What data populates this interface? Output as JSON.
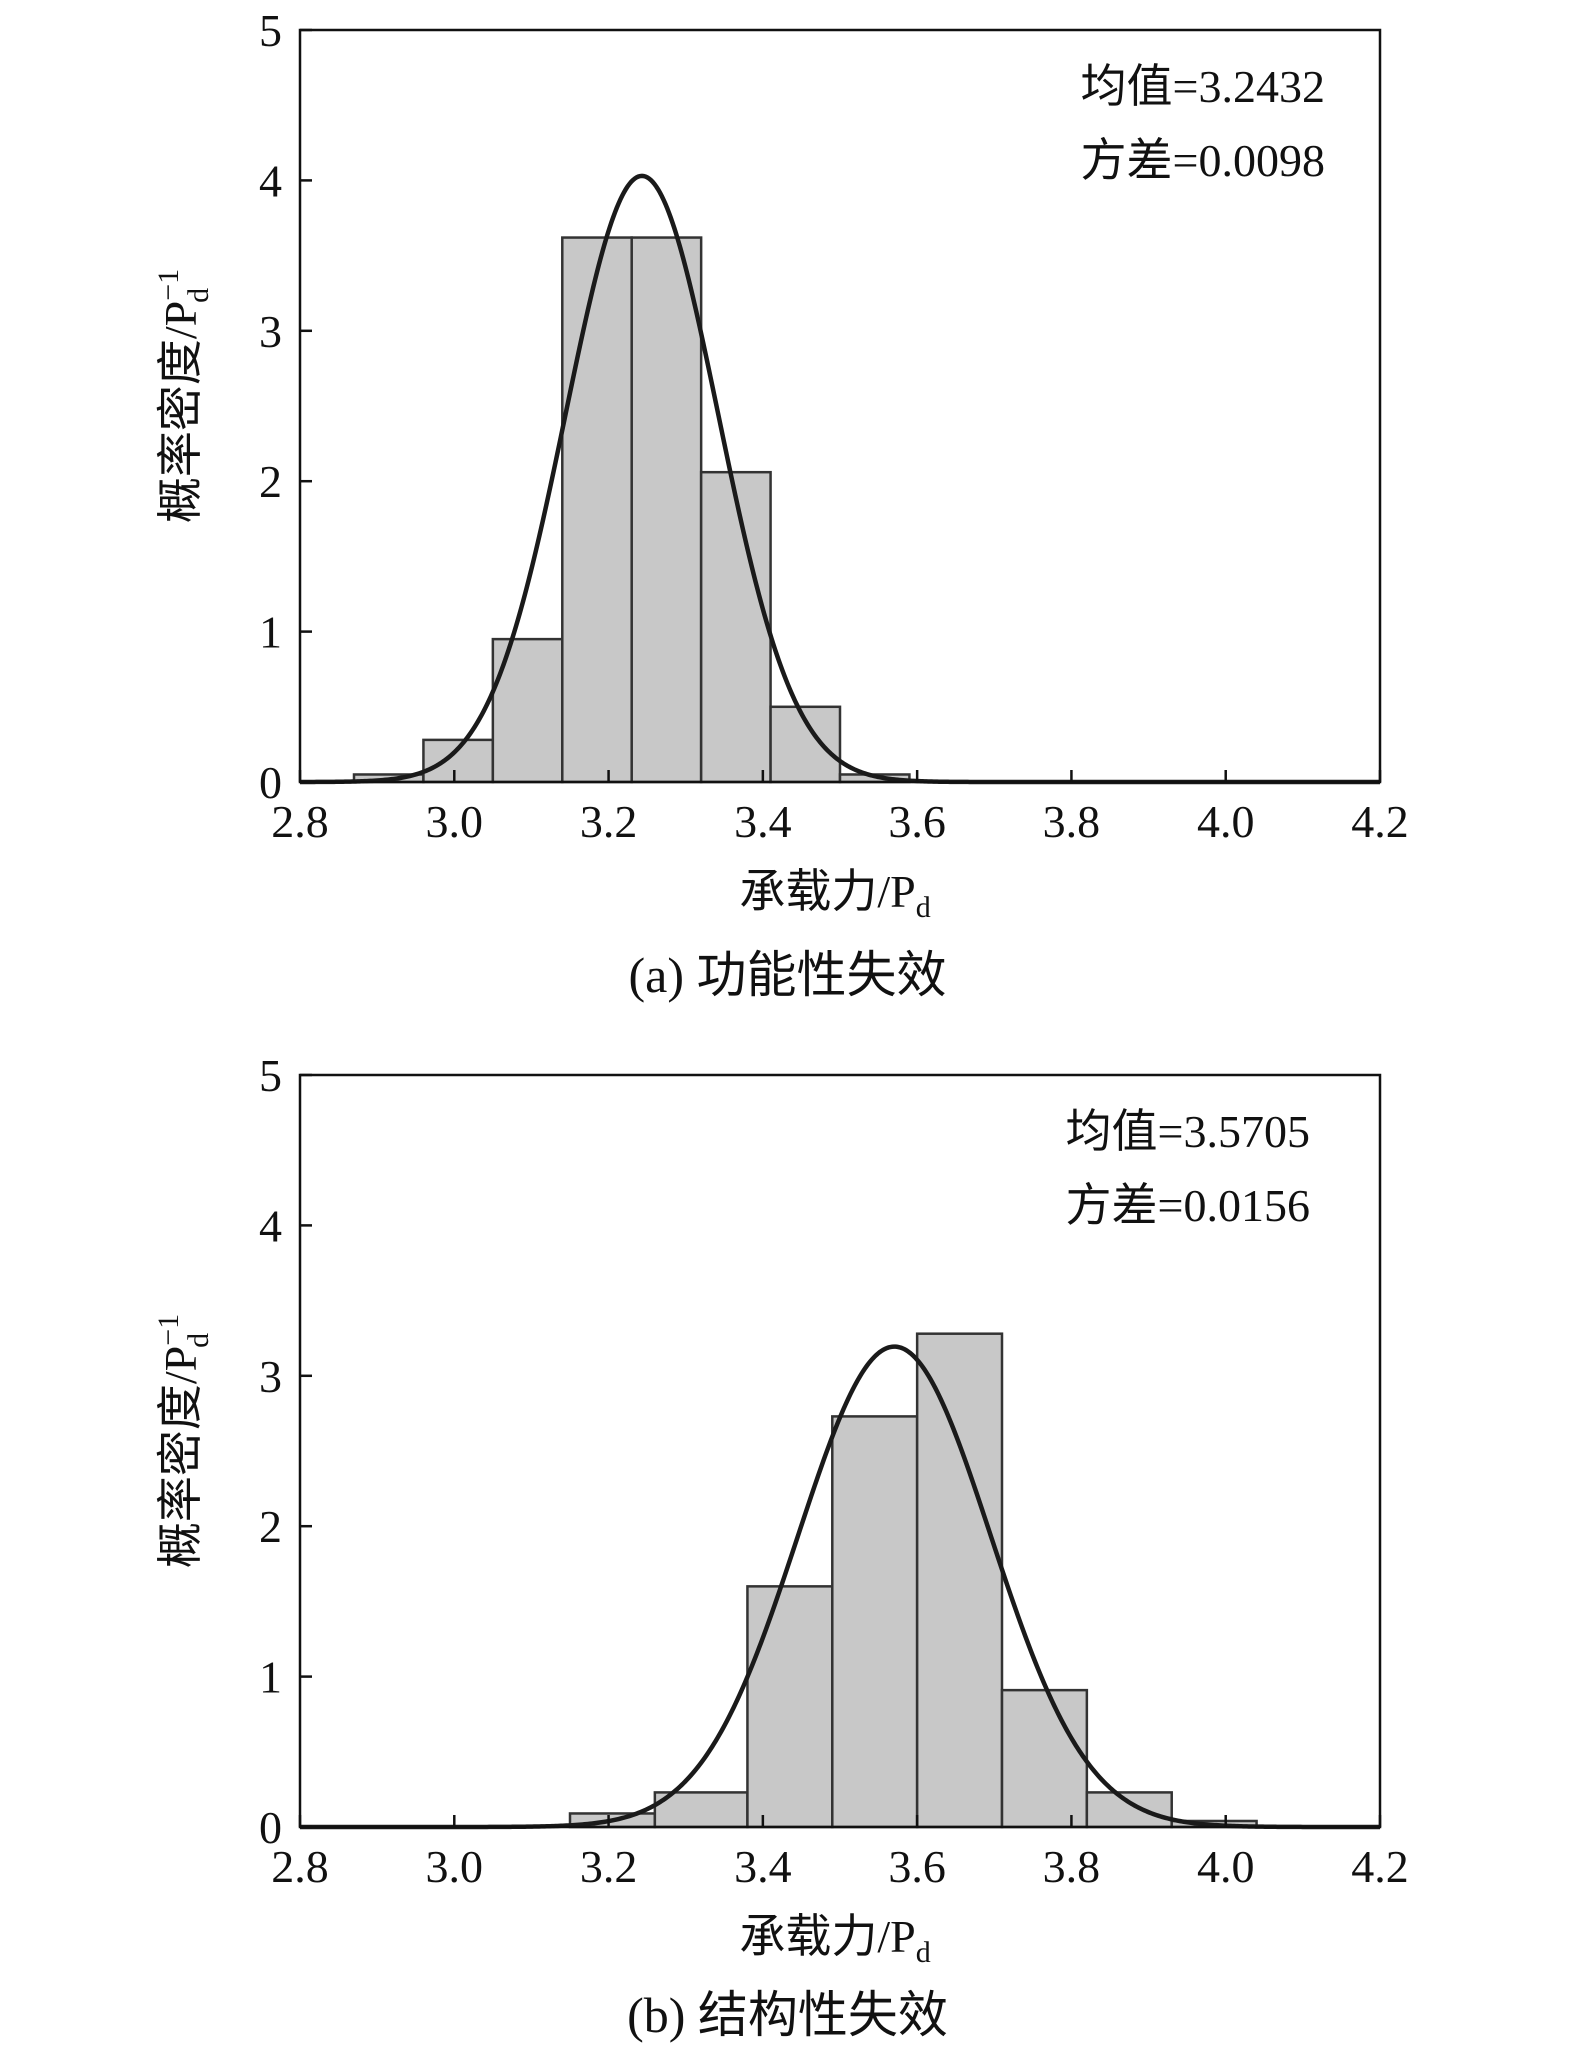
{
  "chart_data": [
    {
      "type": "bar",
      "caption": "(a) 功能性失效",
      "xlabel": "承载力/P",
      "xlabel_sub": "d",
      "ylabel": "概率密度/P",
      "ylabel_sub": "d",
      "ylabel_sup": "−1",
      "xlim": [
        2.8,
        4.2
      ],
      "ylim": [
        0,
        5
      ],
      "xticks": [
        "2.8",
        "3.0",
        "3.2",
        "3.4",
        "3.6",
        "3.8",
        "4.0",
        "4.2"
      ],
      "yticks": [
        "0",
        "1",
        "2",
        "3",
        "4",
        "5"
      ],
      "annotations": [
        "均值=3.2432",
        "方差=0.0098"
      ],
      "bins": [
        {
          "x0": 2.87,
          "x1": 2.96,
          "value": 0.05
        },
        {
          "x0": 2.96,
          "x1": 3.05,
          "value": 0.28
        },
        {
          "x0": 3.05,
          "x1": 3.14,
          "value": 0.95
        },
        {
          "x0": 3.14,
          "x1": 3.23,
          "value": 3.62
        },
        {
          "x0": 3.23,
          "x1": 3.32,
          "value": 3.62
        },
        {
          "x0": 3.32,
          "x1": 3.41,
          "value": 2.06
        },
        {
          "x0": 3.41,
          "x1": 3.5,
          "value": 0.5
        },
        {
          "x0": 3.5,
          "x1": 3.59,
          "value": 0.05
        }
      ],
      "curve": {
        "type": "normal",
        "mean": 3.2432,
        "variance": 0.0098
      }
    },
    {
      "type": "bar",
      "caption": "(b) 结构性失效",
      "xlabel": "承载力/P",
      "xlabel_sub": "d",
      "ylabel": "概率密度/P",
      "ylabel_sub": "d",
      "ylabel_sup": "−1",
      "xlim": [
        2.8,
        4.2
      ],
      "ylim": [
        0,
        5
      ],
      "xticks": [
        "2.8",
        "3.0",
        "3.2",
        "3.4",
        "3.6",
        "3.8",
        "4.0",
        "4.2"
      ],
      "yticks": [
        "0",
        "1",
        "2",
        "3",
        "4",
        "5"
      ],
      "annotations": [
        "均值=3.5705",
        "方差=0.0156"
      ],
      "bins": [
        {
          "x0": 3.15,
          "x1": 3.26,
          "value": 0.09
        },
        {
          "x0": 3.26,
          "x1": 3.38,
          "value": 0.23
        },
        {
          "x0": 3.38,
          "x1": 3.49,
          "value": 1.6
        },
        {
          "x0": 3.49,
          "x1": 3.6,
          "value": 2.73
        },
        {
          "x0": 3.6,
          "x1": 3.71,
          "value": 3.28
        },
        {
          "x0": 3.71,
          "x1": 3.82,
          "value": 0.91
        },
        {
          "x0": 3.82,
          "x1": 3.93,
          "value": 0.23
        },
        {
          "x0": 3.93,
          "x1": 4.04,
          "value": 0.04
        }
      ],
      "curve": {
        "type": "normal",
        "mean": 3.5705,
        "variance": 0.0156
      }
    }
  ],
  "colors": {
    "bar_fill": "#c8c8c8",
    "bar_stroke": "#333333",
    "curve": "#1a1a1a",
    "axis": "#111111"
  }
}
